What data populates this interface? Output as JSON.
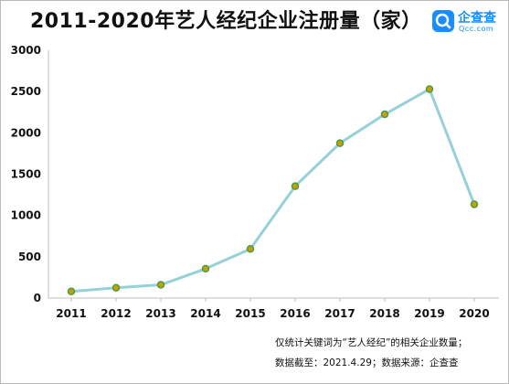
{
  "title": "2011-2020年艺人经纪企业注册量（家）",
  "logo": {
    "icon": "qcc-logo-icon",
    "name": "企查查",
    "domain": "Qcc.com",
    "color": "#1a8cff"
  },
  "chart_data": {
    "type": "line",
    "title": "2011-2020年艺人经纪企业注册量（家）",
    "xlabel": "",
    "ylabel": "",
    "categories": [
      "2011",
      "2012",
      "2013",
      "2014",
      "2015",
      "2016",
      "2017",
      "2018",
      "2019",
      "2020"
    ],
    "series": [
      {
        "values": [
          80,
          125,
          160,
          355,
          595,
          1355,
          1875,
          2225,
          2530,
          1135
        ],
        "line_color": "#96d0d8",
        "marker_color": "#c8a100",
        "marker_edge_color": "#4a9a48"
      }
    ],
    "ylim": [
      0,
      3000
    ],
    "yticks": [
      "0",
      "500",
      "1000",
      "1500",
      "2000",
      "2500",
      "3000"
    ],
    "grid": false,
    "legend": "none"
  },
  "notes": [
    "仅统计关键词为“艺人经纪”的相关企业数量；",
    "数据截至：2021.4.29；数据来源：企查查"
  ]
}
